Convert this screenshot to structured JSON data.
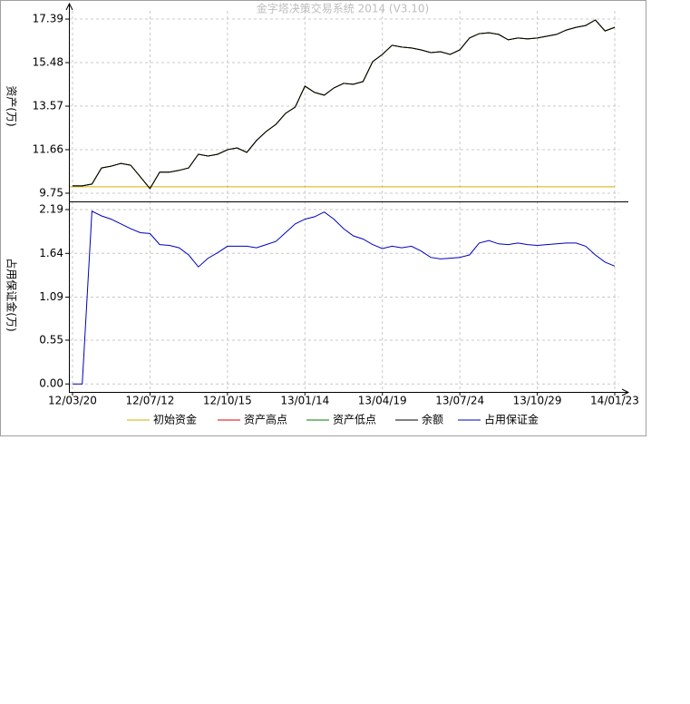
{
  "chart_data": [
    {
      "type": "line",
      "title": "金字塔决策交易系统 2014 (V3.10)",
      "ylabel": "资产(万)",
      "ylim": [
        9.39,
        17.75
      ],
      "yticks": [
        9.75,
        11.66,
        13.57,
        15.48,
        17.39
      ],
      "grid": true,
      "hline": {
        "name": "初始资金",
        "color": "#d4b200",
        "value": 10.03
      },
      "series": [
        {
          "name": "资产高点",
          "color": "#e00000",
          "values": [
            10.07,
            10.07,
            10.15,
            10.86,
            10.94,
            11.06,
            10.98,
            10.47,
            9.95,
            10.67,
            10.67,
            10.75,
            10.86,
            11.46,
            11.38,
            11.46,
            11.66,
            11.74,
            11.54,
            12.06,
            12.46,
            12.77,
            13.25,
            13.53,
            14.45,
            14.17,
            14.05,
            14.37,
            14.57,
            14.53,
            14.65,
            15.52,
            15.84,
            16.24,
            16.16,
            16.12,
            16.04,
            15.92,
            15.96,
            15.84,
            16.04,
            16.56,
            16.75,
            16.79,
            16.72,
            16.48,
            16.56,
            16.52,
            16.56,
            16.64,
            16.72,
            16.91,
            17.03,
            17.11,
            17.35,
            16.87,
            17.03
          ]
        },
        {
          "name": "资产低点",
          "color": "#008000",
          "values": [
            10.07,
            10.07,
            10.15,
            10.86,
            10.94,
            11.06,
            10.98,
            10.47,
            9.95,
            10.67,
            10.67,
            10.75,
            10.86,
            11.46,
            11.38,
            11.46,
            11.66,
            11.74,
            11.54,
            12.06,
            12.46,
            12.77,
            13.25,
            13.53,
            14.45,
            14.17,
            14.05,
            14.37,
            14.57,
            14.53,
            14.65,
            15.52,
            15.84,
            16.24,
            16.16,
            16.12,
            16.04,
            15.92,
            15.96,
            15.84,
            16.04,
            16.56,
            16.75,
            16.79,
            16.72,
            16.48,
            16.56,
            16.52,
            16.56,
            16.64,
            16.72,
            16.91,
            17.03,
            17.11,
            17.35,
            16.87,
            17.03
          ]
        },
        {
          "name": "余额",
          "color": "#000000",
          "values": [
            10.07,
            10.07,
            10.15,
            10.86,
            10.94,
            11.06,
            10.98,
            10.47,
            9.95,
            10.67,
            10.67,
            10.75,
            10.86,
            11.46,
            11.38,
            11.46,
            11.66,
            11.74,
            11.54,
            12.06,
            12.46,
            12.77,
            13.25,
            13.53,
            14.45,
            14.17,
            14.05,
            14.37,
            14.57,
            14.53,
            14.65,
            15.52,
            15.84,
            16.24,
            16.16,
            16.12,
            16.04,
            15.92,
            15.96,
            15.84,
            16.04,
            16.56,
            16.75,
            16.79,
            16.72,
            16.48,
            16.56,
            16.52,
            16.56,
            16.64,
            16.72,
            16.91,
            17.03,
            17.11,
            17.35,
            16.87,
            17.03
          ]
        }
      ]
    },
    {
      "type": "line",
      "ylabel": "占用保证金(万)",
      "categories": [
        "12/03/20",
        null,
        null,
        null,
        null,
        null,
        null,
        null,
        "12/07/12",
        null,
        null,
        null,
        null,
        null,
        null,
        null,
        "12/10/15",
        null,
        null,
        null,
        null,
        null,
        null,
        null,
        "13/01/14",
        null,
        null,
        null,
        null,
        null,
        null,
        null,
        "13/04/19",
        null,
        null,
        null,
        null,
        null,
        null,
        null,
        "13/07/24",
        null,
        null,
        null,
        null,
        null,
        null,
        null,
        "13/10/29",
        null,
        null,
        null,
        null,
        null,
        null,
        null,
        "14/01/23"
      ],
      "ylim": [
        -0.1,
        2.27
      ],
      "yticks": [
        {
          "value": 0,
          "label": "0.00"
        },
        0.55,
        1.09,
        1.64,
        2.19
      ],
      "grid": true,
      "series": [
        {
          "name": "占用保证金",
          "color": "#0000c0",
          "values": [
            0,
            0,
            2.17,
            2.11,
            2.07,
            2.01,
            1.95,
            1.9,
            1.89,
            1.75,
            1.74,
            1.71,
            1.62,
            1.47,
            1.58,
            1.65,
            1.73,
            1.73,
            1.73,
            1.71,
            1.75,
            1.79,
            1.9,
            2.01,
            2.07,
            2.1,
            2.16,
            2.07,
            1.95,
            1.86,
            1.82,
            1.75,
            1.7,
            1.73,
            1.71,
            1.73,
            1.67,
            1.59,
            1.57,
            1.58,
            1.59,
            1.62,
            1.77,
            1.8,
            1.76,
            1.75,
            1.77,
            1.75,
            1.74,
            1.75,
            1.76,
            1.77,
            1.77,
            1.73,
            1.62,
            1.53,
            1.48
          ]
        }
      ]
    }
  ]
}
